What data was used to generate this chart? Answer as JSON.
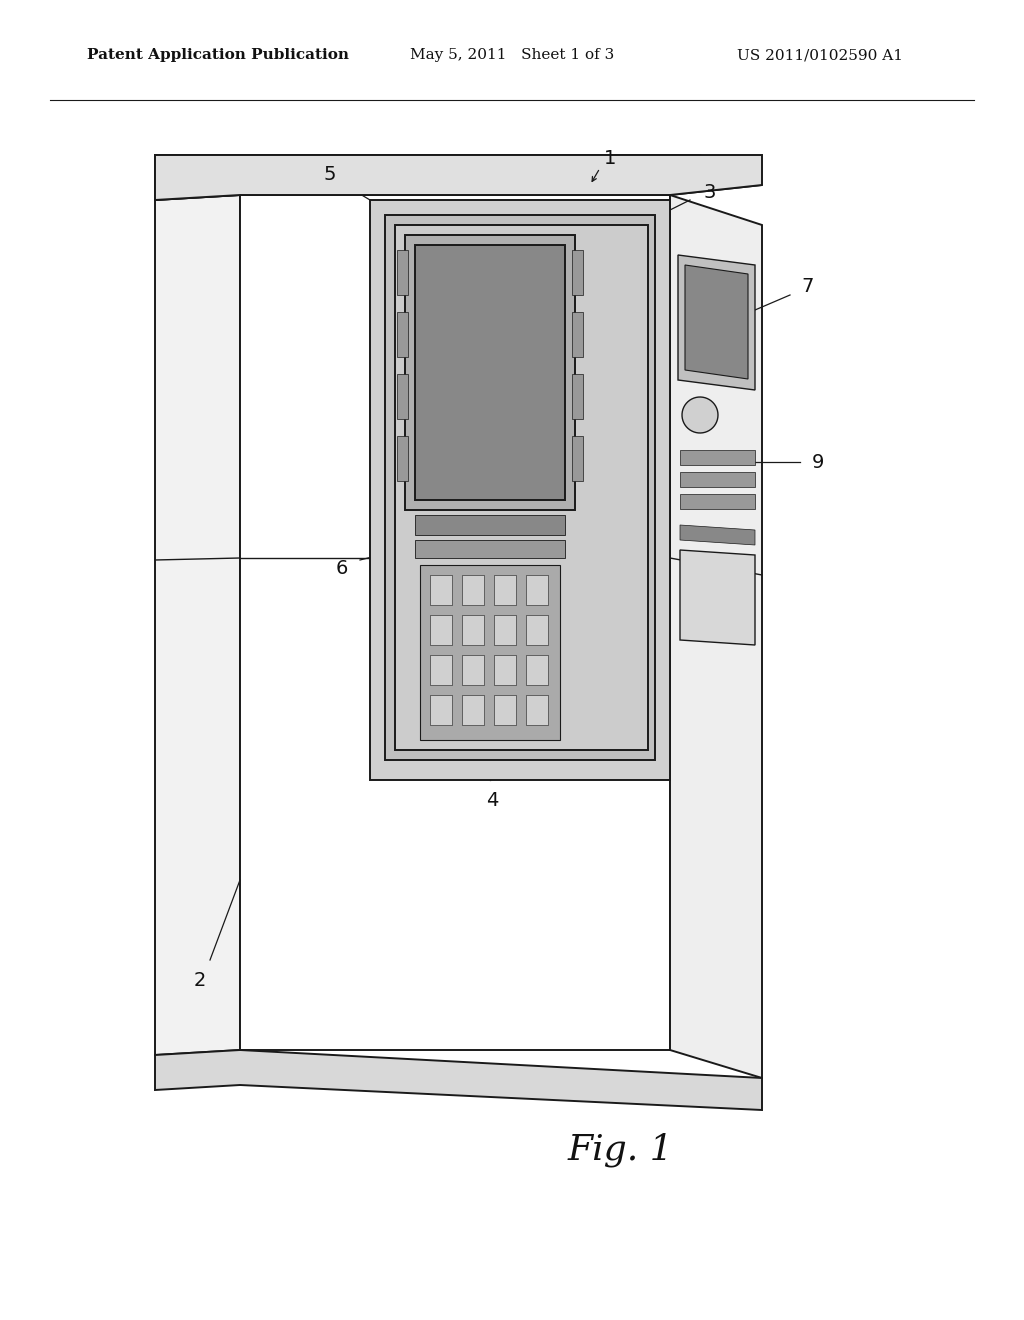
{
  "background_color": "#ffffff",
  "header_left": "Patent Application Publication",
  "header_mid": "May 5, 2011   Sheet 1 of 3",
  "header_right": "US 2011/0102590 A1",
  "fig_caption": "Fig. 1",
  "line_color": "#1a1a1a",
  "label_fontsize": 14,
  "header_fontsize": 11,
  "fig_fontsize": 26
}
